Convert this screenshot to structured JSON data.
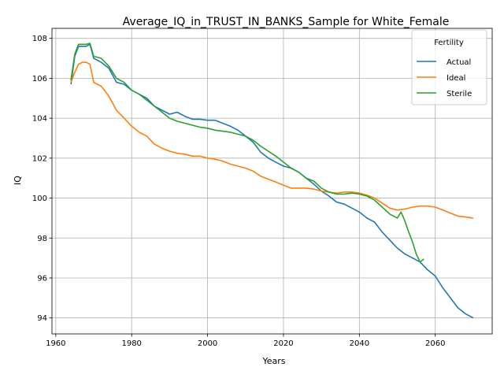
{
  "chart_data": {
    "type": "line",
    "title": "Average_IQ_in_TRUST_IN_BANKS_Sample for White_Female",
    "xlabel": "Years",
    "ylabel": "IQ",
    "xlim": [
      1959,
      2075
    ],
    "ylim": [
      93.2,
      108.5
    ],
    "xticks": [
      1960,
      1980,
      2000,
      2020,
      2040,
      2060
    ],
    "yticks": [
      94,
      96,
      98,
      100,
      102,
      104,
      106,
      108
    ],
    "grid": true,
    "legend": {
      "title": "Fertility",
      "placement": "top-right"
    },
    "series": [
      {
        "name": "Actual",
        "color": "#1f77b4",
        "x": [
          1964,
          1965,
          1966,
          1967,
          1968,
          1969,
          1970,
          1972,
          1974,
          1976,
          1978,
          1980,
          1982,
          1984,
          1986,
          1988,
          1990,
          1992,
          1994,
          1996,
          1998,
          2000,
          2002,
          2004,
          2006,
          2008,
          2010,
          2012,
          2014,
          2016,
          2018,
          2020,
          2022,
          2024,
          2026,
          2028,
          2030,
          2032,
          2034,
          2036,
          2038,
          2040,
          2042,
          2044,
          2046,
          2048,
          2050,
          2052,
          2054,
          2056,
          2058,
          2060,
          2062,
          2064,
          2066,
          2068,
          2070
        ],
        "y": [
          105.7,
          107.1,
          107.6,
          107.6,
          107.6,
          107.7,
          107.0,
          106.8,
          106.5,
          105.8,
          105.7,
          105.4,
          105.2,
          105.0,
          104.6,
          104.4,
          104.2,
          104.3,
          104.1,
          103.95,
          103.95,
          103.9,
          103.9,
          103.75,
          103.6,
          103.4,
          103.1,
          102.8,
          102.3,
          102.0,
          101.8,
          101.6,
          101.5,
          101.3,
          101.0,
          100.7,
          100.35,
          100.1,
          99.8,
          99.7,
          99.5,
          99.3,
          99.0,
          98.8,
          98.3,
          97.9,
          97.5,
          97.2,
          97.0,
          96.8,
          96.4,
          96.1,
          95.5,
          95.0,
          94.5,
          94.2,
          94.0
        ]
      },
      {
        "name": "Ideal",
        "color": "#ff7f0e",
        "x": [
          1964,
          1965,
          1966,
          1967,
          1968,
          1969,
          1970,
          1972,
          1974,
          1976,
          1978,
          1980,
          1982,
          1984,
          1986,
          1988,
          1990,
          1992,
          1994,
          1996,
          1998,
          2000,
          2002,
          2004,
          2006,
          2008,
          2010,
          2012,
          2014,
          2016,
          2018,
          2020,
          2022,
          2024,
          2026,
          2028,
          2030,
          2032,
          2034,
          2036,
          2038,
          2040,
          2042,
          2044,
          2046,
          2048,
          2050,
          2052,
          2054,
          2056,
          2058,
          2060,
          2062,
          2064,
          2066,
          2068,
          2070
        ],
        "y": [
          105.8,
          106.3,
          106.7,
          106.8,
          106.8,
          106.7,
          105.8,
          105.6,
          105.1,
          104.4,
          104.0,
          103.6,
          103.3,
          103.1,
          102.7,
          102.5,
          102.35,
          102.25,
          102.2,
          102.1,
          102.1,
          102.0,
          101.95,
          101.85,
          101.7,
          101.6,
          101.5,
          101.35,
          101.1,
          100.95,
          100.8,
          100.65,
          100.5,
          100.5,
          100.5,
          100.45,
          100.35,
          100.3,
          100.25,
          100.3,
          100.3,
          100.25,
          100.15,
          100.0,
          99.75,
          99.5,
          99.4,
          99.45,
          99.55,
          99.6,
          99.6,
          99.55,
          99.4,
          99.25,
          99.1,
          99.05,
          99.0
        ]
      },
      {
        "name": "Sterile",
        "color": "#2ca02c",
        "x": [
          1964,
          1965,
          1966,
          1967,
          1968,
          1969,
          1970,
          1972,
          1974,
          1976,
          1978,
          1980,
          1982,
          1984,
          1986,
          1988,
          1990,
          1992,
          1994,
          1996,
          1998,
          2000,
          2002,
          2004,
          2006,
          2008,
          2010,
          2012,
          2014,
          2016,
          2018,
          2020,
          2022,
          2024,
          2026,
          2028,
          2030,
          2032,
          2034,
          2036,
          2038,
          2040,
          2042,
          2044,
          2046,
          2048,
          2050,
          2051,
          2052,
          2053,
          2054,
          2055,
          2056,
          2057
        ],
        "y": [
          105.9,
          107.2,
          107.7,
          107.7,
          107.7,
          107.75,
          107.1,
          107.0,
          106.6,
          106.0,
          105.8,
          105.4,
          105.2,
          104.9,
          104.6,
          104.3,
          104.0,
          103.85,
          103.75,
          103.65,
          103.55,
          103.5,
          103.4,
          103.35,
          103.3,
          103.2,
          103.1,
          102.9,
          102.6,
          102.35,
          102.1,
          101.8,
          101.5,
          101.3,
          101.0,
          100.85,
          100.5,
          100.3,
          100.2,
          100.2,
          100.25,
          100.2,
          100.1,
          99.9,
          99.55,
          99.2,
          99.0,
          99.3,
          98.85,
          98.3,
          97.8,
          97.2,
          96.8,
          96.95
        ]
      }
    ]
  }
}
